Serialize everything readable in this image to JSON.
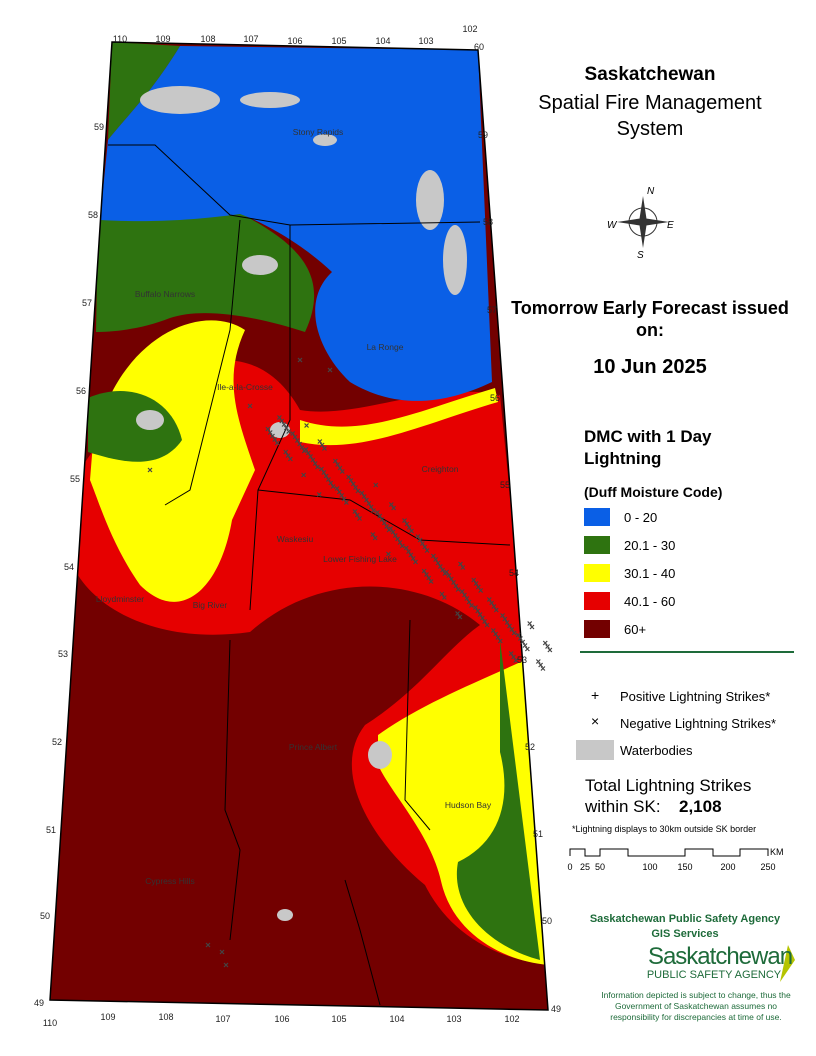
{
  "header": {
    "title": "Saskatchewan",
    "subtitle": "Spatial Fire Management System"
  },
  "forecast": {
    "label": "Tomorrow Early Forecast issued on:",
    "date": "10 Jun 2025"
  },
  "legend": {
    "title": "DMC with 1 Day Lightning",
    "subtitle": "(Duff Moisture Code)",
    "classes": [
      {
        "label": "0 - 20",
        "color": "#0a5fe6"
      },
      {
        "label": "20.1 - 30",
        "color": "#2e7310"
      },
      {
        "label": "30.1 - 40",
        "color": "#ffff00"
      },
      {
        "label": "40.1 - 60",
        "color": "#e60000"
      },
      {
        "label": "60+",
        "color": "#730000"
      }
    ],
    "symbols": [
      {
        "label": "Positive Lightning Strikes*"
      },
      {
        "label": "Negative Lightning Strikes*"
      },
      {
        "label": "Waterbodies",
        "color": "#c8c8c8"
      }
    ]
  },
  "total": {
    "label": "Total Lightning Strikes within SK:",
    "value": "2,108",
    "note": "*Lightning displays to 30km outside SK border"
  },
  "scale_bar": {
    "ticks": [
      "0",
      "25",
      "50",
      "100",
      "150",
      "200",
      "250"
    ],
    "unit": "KM"
  },
  "map": {
    "compass": [
      "N",
      "E",
      "S",
      "W"
    ],
    "longitude_top": [
      "110",
      "109",
      "108",
      "107",
      "106",
      "105",
      "104",
      "103",
      "102"
    ],
    "longitude_bottom": [
      "110",
      "109",
      "108",
      "107",
      "106",
      "105",
      "104",
      "103",
      "102"
    ],
    "latitude_left": [
      "59",
      "58",
      "57",
      "56",
      "55",
      "54",
      "53",
      "52",
      "51",
      "50",
      "49"
    ],
    "latitude_right": [
      "60",
      "59",
      "58",
      "57",
      "56",
      "55",
      "54",
      "53",
      "52",
      "51",
      "50",
      "49"
    ],
    "places": [
      "Stony Rapids",
      "Buffalo Narrows",
      "La Ronge",
      "Ile-a-la-Crosse",
      "Creighton",
      "Waskesiu",
      "Lower Fishing Lake",
      "Lloydminster",
      "Big River",
      "Prince Albert",
      "Hudson Bay",
      "Cypress Hills"
    ]
  },
  "agency": {
    "name": "Saskatchewan Public Safety Agency",
    "unit": "GIS Services",
    "logo_name": "Saskatchewan",
    "logo_sub": "PUBLIC SAFETY AGENCY",
    "disclaimer": "Information depicted is subject to change, thus the Government of Saskatchewan assumes no responsibility for discrepancies at time of use."
  }
}
